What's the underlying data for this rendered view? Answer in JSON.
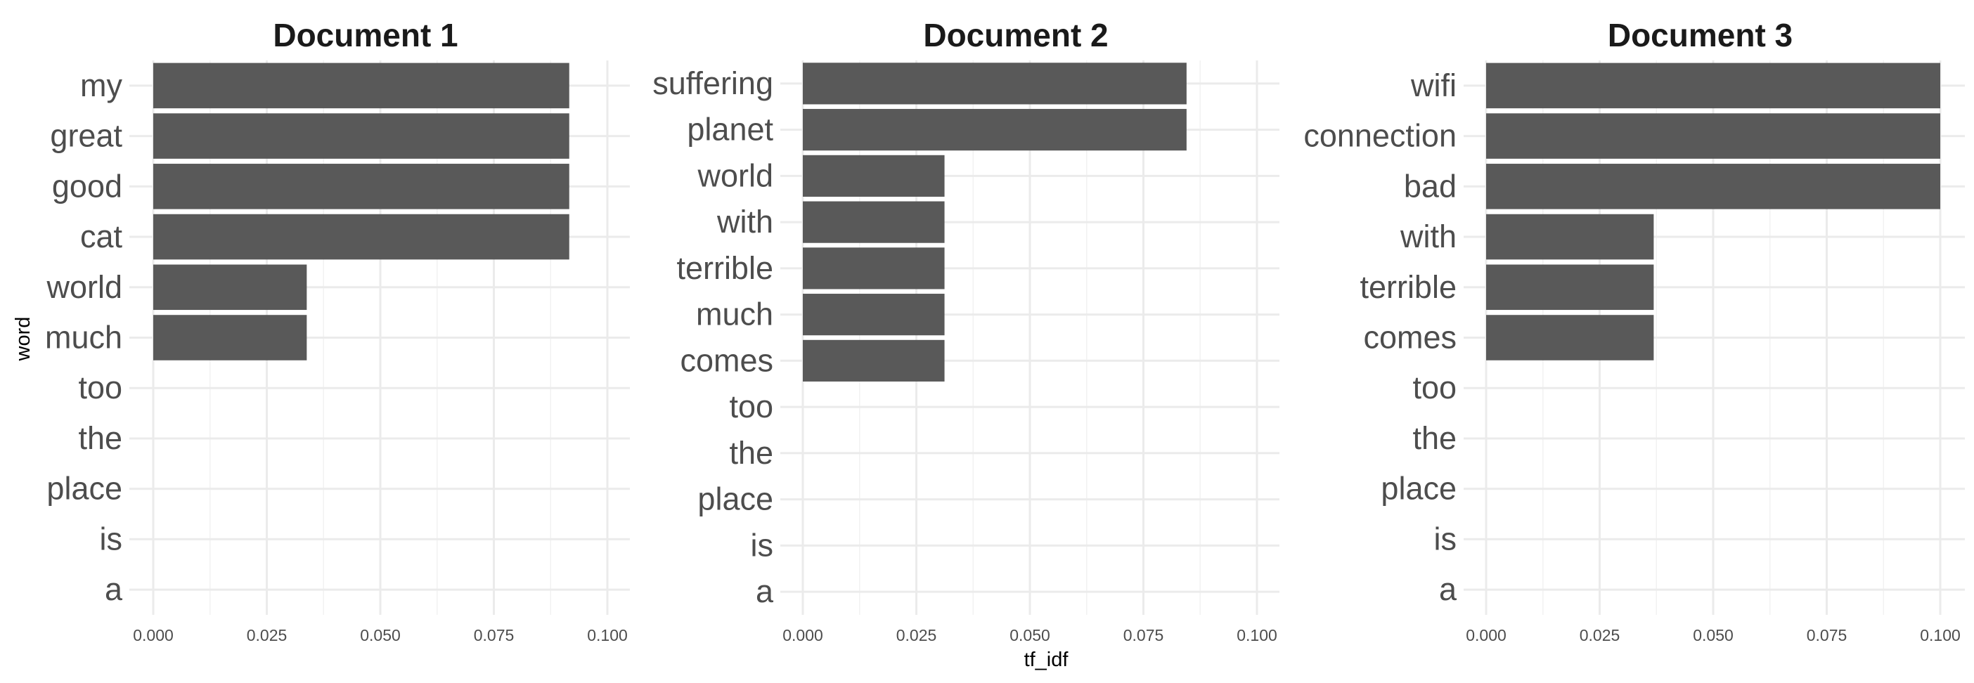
{
  "chart_data": {
    "type": "bar",
    "orientation": "horizontal",
    "xlabel": "tf_idf",
    "ylabel": "word",
    "xlim": [
      0,
      0.1
    ],
    "x_ticks": [
      "0.000",
      "0.025",
      "0.050",
      "0.075",
      "0.100"
    ],
    "grid": true,
    "bar_color": "#595959",
    "panels": [
      {
        "title": "Document 1",
        "categories": [
          "my",
          "great",
          "good",
          "cat",
          "world",
          "much",
          "too",
          "the",
          "place",
          "is",
          "a"
        ],
        "values": [
          0.0916,
          0.0916,
          0.0916,
          0.0916,
          0.0338,
          0.0338,
          0,
          0,
          0,
          0,
          0
        ]
      },
      {
        "title": "Document 2",
        "categories": [
          "suffering",
          "planet",
          "world",
          "with",
          "terrible",
          "much",
          "comes",
          "too",
          "the",
          "place",
          "is",
          "a"
        ],
        "values": [
          0.0845,
          0.0845,
          0.0312,
          0.0312,
          0.0312,
          0.0312,
          0.0312,
          0,
          0,
          0,
          0,
          0
        ]
      },
      {
        "title": "Document 3",
        "categories": [
          "wifi",
          "connection",
          "bad",
          "with",
          "terrible",
          "comes",
          "too",
          "the",
          "place",
          "is",
          "a"
        ],
        "values": [
          0.1,
          0.1,
          0.1,
          0.0369,
          0.0369,
          0.0369,
          0,
          0,
          0,
          0,
          0
        ]
      }
    ]
  }
}
